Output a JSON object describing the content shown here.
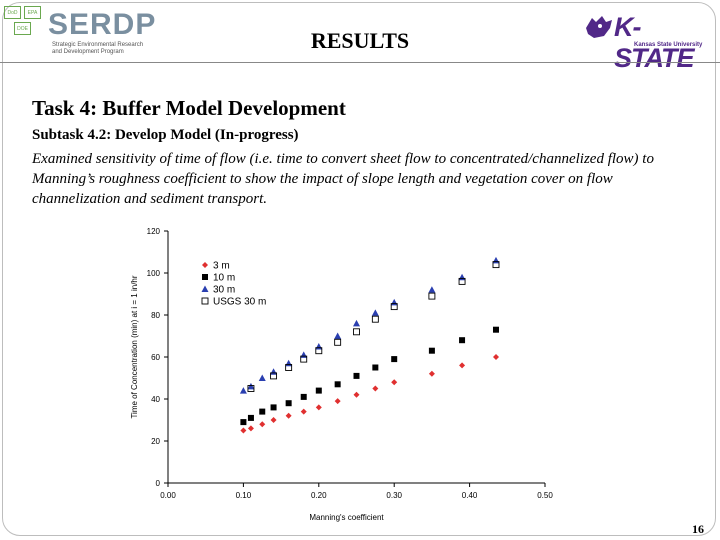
{
  "header": {
    "title": "RESULTS",
    "serdp_logo": {
      "word": "SERDP",
      "subtitle": "Strategic Environmental Research and Development Program",
      "boxes": [
        "DoD",
        "EPA",
        "DOE"
      ]
    },
    "kstate_logo": {
      "word": "K-STATE",
      "subtitle": "Kansas State University"
    }
  },
  "content": {
    "task_title": "Task 4:  Buffer Model Development",
    "subtask": "Subtask 4.2:  Develop Model (In-progress)",
    "description": "Examined sensitivity of time of flow (i.e. time to convert sheet flow to concentrated/channelized flow) to Manning’s roughness coefficient to show the impact of slope length and vegetation cover on flow channelization and sediment transport."
  },
  "chart_data": {
    "type": "scatter",
    "xlabel": "Manning's coefficient",
    "ylabel": "Time of Concentration (min) at i = 1 in/hr",
    "xlim": [
      0,
      0.5
    ],
    "ylim": [
      0,
      120
    ],
    "x_ticks": [
      "0.00",
      "0.10",
      "0.20",
      "0.30",
      "0.40",
      "0.50"
    ],
    "y_ticks": [
      "0",
      "20",
      "40",
      "60",
      "80",
      "100",
      "120"
    ],
    "legend_position": "top-left",
    "series": [
      {
        "name": "3 m",
        "marker": "diamond",
        "color": "#e03030",
        "x": [
          0.1,
          0.11,
          0.125,
          0.14,
          0.16,
          0.18,
          0.2,
          0.225,
          0.25,
          0.275,
          0.3,
          0.35,
          0.39,
          0.435
        ],
        "y": [
          25,
          26,
          28,
          30,
          32,
          34,
          36,
          39,
          42,
          45,
          48,
          52,
          56,
          60
        ]
      },
      {
        "name": "10 m",
        "marker": "square",
        "color": "#000000",
        "x": [
          0.1,
          0.11,
          0.125,
          0.14,
          0.16,
          0.18,
          0.2,
          0.225,
          0.25,
          0.275,
          0.3,
          0.35,
          0.39,
          0.435
        ],
        "y": [
          29,
          31,
          34,
          36,
          38,
          41,
          44,
          47,
          51,
          55,
          59,
          63,
          68,
          73
        ]
      },
      {
        "name": "30 m",
        "marker": "triangle",
        "color": "#2a3fb0",
        "x": [
          0.1,
          0.11,
          0.125,
          0.14,
          0.16,
          0.18,
          0.2,
          0.225,
          0.25,
          0.275,
          0.3,
          0.35,
          0.39,
          0.435
        ],
        "y": [
          44,
          46,
          50,
          53,
          57,
          61,
          65,
          70,
          76,
          81,
          86,
          92,
          98,
          106
        ]
      },
      {
        "name": "USGS 30 m",
        "marker": "open-square",
        "color": "#000000",
        "x": [
          0.11,
          0.14,
          0.16,
          0.18,
          0.2,
          0.225,
          0.25,
          0.275,
          0.3,
          0.35,
          0.39,
          0.435
        ],
        "y": [
          45,
          51,
          55,
          59,
          63,
          67,
          72,
          78,
          84,
          89,
          96,
          104
        ]
      }
    ]
  },
  "page": {
    "number": "16"
  }
}
